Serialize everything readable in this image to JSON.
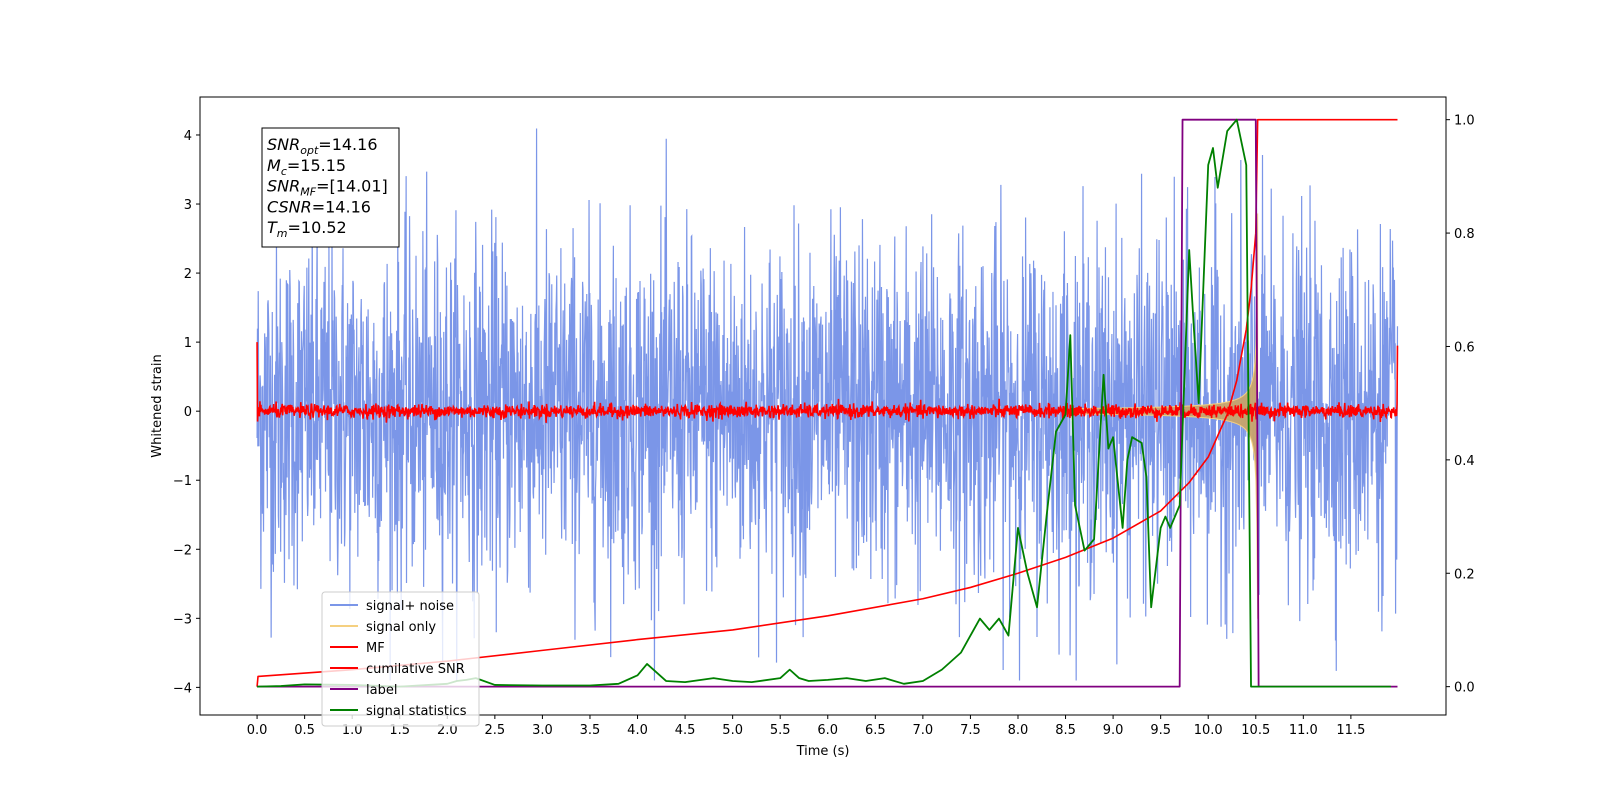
{
  "chart_data": {
    "type": "line",
    "xlabel": "Time (s)",
    "ylabel": "Whitened strain",
    "xlim": [
      -0.6,
      12.5
    ],
    "ylim": [
      -4.4,
      4.55
    ],
    "y2lim": [
      -0.05,
      1.04
    ],
    "x_ticks": [
      0.0,
      0.5,
      1.0,
      1.5,
      2.0,
      2.5,
      3.0,
      3.5,
      4.0,
      4.5,
      5.0,
      5.5,
      6.0,
      6.5,
      7.0,
      7.5,
      8.0,
      8.5,
      9.0,
      9.5,
      10.0,
      10.5,
      11.0,
      11.5
    ],
    "x_tick_labels": [
      "0.0",
      "0.5",
      "1.0",
      "1.5",
      "2.0",
      "2.5",
      "3.0",
      "3.5",
      "4.0",
      "4.5",
      "5.0",
      "5.5",
      "6.0",
      "6.5",
      "7.0",
      "7.5",
      "8.0",
      "8.5",
      "9.0",
      "9.5",
      "10.0",
      "10.5",
      "11.0",
      "11.5"
    ],
    "y_ticks": [
      -4,
      -3,
      -2,
      -1,
      0,
      1,
      2,
      3,
      4
    ],
    "y_tick_labels": [
      "−4",
      "−3",
      "−2",
      "−1",
      "0",
      "1",
      "2",
      "3",
      "4"
    ],
    "y2_ticks": [
      0.0,
      0.2,
      0.4,
      0.6,
      0.8,
      1.0
    ],
    "y2_tick_labels": [
      "0.0",
      "0.2",
      "0.4",
      "0.6",
      "0.8",
      "1.0"
    ],
    "legend_position": "lower-left",
    "annotation": {
      "lines": [
        {
          "main": "SNR",
          "sub": "opt",
          "value": "=14.16"
        },
        {
          "main": "M",
          "sub": "c",
          "value": "=15.15"
        },
        {
          "main": "SNR",
          "sub": "MF",
          "value": "=[14.01]"
        },
        {
          "main": "CSNR",
          "sub": "",
          "value": "=14.16"
        },
        {
          "main": "T",
          "sub": "m",
          "value": "=10.52"
        }
      ]
    },
    "series": [
      {
        "name": "signal+ noise",
        "color": "#7b96e8",
        "axis": "left",
        "style": "noise",
        "x_range": [
          0,
          11.99
        ],
        "amplitude_sd": 1.25
      },
      {
        "name": "signal only",
        "color": "#f5d080",
        "axis": "left",
        "style": "chirp",
        "x_range": [
          0,
          10.52
        ]
      },
      {
        "name": "MF",
        "color": "#ff0000",
        "axis": "left",
        "style": "noise",
        "x_range": [
          0,
          11.99
        ],
        "amplitude_sd": 0.05
      },
      {
        "name": "cumilative SNR",
        "color": "#ff0000",
        "axis": "right",
        "x": [
          0.0,
          0.01,
          1.0,
          2.0,
          3.0,
          4.0,
          5.0,
          6.0,
          7.0,
          7.5,
          8.0,
          8.5,
          9.0,
          9.5,
          9.8,
          10.0,
          10.2,
          10.3,
          10.4,
          10.45,
          10.5,
          10.52,
          11.99
        ],
        "y": [
          0.0,
          0.018,
          0.03,
          0.045,
          0.064,
          0.083,
          0.1,
          0.125,
          0.155,
          0.175,
          0.2,
          0.228,
          0.262,
          0.31,
          0.36,
          0.405,
          0.48,
          0.54,
          0.63,
          0.7,
          0.8,
          1.0,
          1.0
        ]
      },
      {
        "name": "label",
        "color": "#800080",
        "axis": "right",
        "x": [
          0.0,
          9.7,
          9.73,
          10.5,
          10.53,
          11.99
        ],
        "y": [
          0.0,
          0.0,
          1.0,
          1.0,
          0.0,
          0.0
        ]
      },
      {
        "name": "signal statistics",
        "color": "#008000",
        "axis": "right",
        "x": [
          0.0,
          0.25,
          0.5,
          1.0,
          1.5,
          2.0,
          2.1,
          2.2,
          2.3,
          2.5,
          3.0,
          3.5,
          3.8,
          4.0,
          4.1,
          4.2,
          4.3,
          4.5,
          4.8,
          5.0,
          5.2,
          5.5,
          5.6,
          5.7,
          5.8,
          6.0,
          6.2,
          6.4,
          6.6,
          6.8,
          7.0,
          7.2,
          7.4,
          7.5,
          7.6,
          7.7,
          7.8,
          7.9,
          8.0,
          8.1,
          8.2,
          8.3,
          8.4,
          8.5,
          8.55,
          8.6,
          8.7,
          8.8,
          8.9,
          8.95,
          9.0,
          9.05,
          9.1,
          9.15,
          9.2,
          9.3,
          9.35,
          9.4,
          9.5,
          9.55,
          9.6,
          9.7,
          9.8,
          9.85,
          9.9,
          10.0,
          10.05,
          10.1,
          10.2,
          10.3,
          10.4,
          10.45,
          10.5,
          10.53,
          10.6,
          10.7,
          11.0,
          11.5,
          11.92
        ],
        "y": [
          0.0,
          0.001,
          0.004,
          0.003,
          0.0,
          0.005,
          0.01,
          0.012,
          0.015,
          0.003,
          0.002,
          0.002,
          0.005,
          0.02,
          0.04,
          0.025,
          0.01,
          0.008,
          0.015,
          0.01,
          0.008,
          0.015,
          0.03,
          0.015,
          0.01,
          0.012,
          0.015,
          0.01,
          0.015,
          0.005,
          0.01,
          0.03,
          0.06,
          0.09,
          0.12,
          0.1,
          0.12,
          0.09,
          0.28,
          0.2,
          0.14,
          0.3,
          0.45,
          0.48,
          0.62,
          0.32,
          0.24,
          0.26,
          0.55,
          0.42,
          0.44,
          0.36,
          0.28,
          0.4,
          0.44,
          0.43,
          0.37,
          0.14,
          0.28,
          0.3,
          0.28,
          0.32,
          0.77,
          0.63,
          0.5,
          0.92,
          0.95,
          0.88,
          0.98,
          1.0,
          0.92,
          0.0,
          0.0,
          0.0,
          0.0,
          0.0,
          0.0,
          0.0,
          0.0
        ]
      }
    ]
  }
}
